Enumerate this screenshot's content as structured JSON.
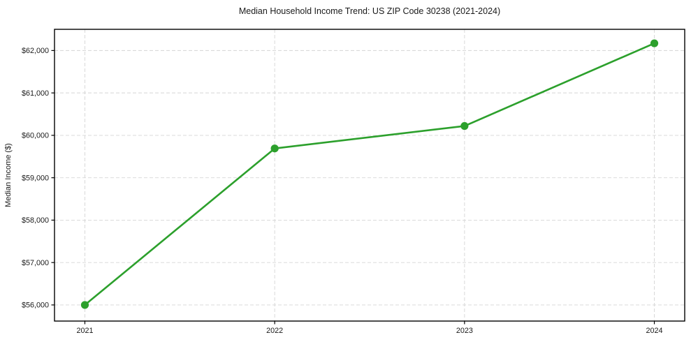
{
  "chart_data": {
    "type": "line",
    "title": "Median Household Income Trend: US ZIP Code 30238 (2021-2024)",
    "xlabel": "",
    "ylabel": "Median Income ($)",
    "x": [
      2021,
      2022,
      2023,
      2024
    ],
    "series": [
      {
        "name": "Median Household Income",
        "values": [
          56000,
          59690,
          60220,
          62170
        ]
      }
    ],
    "xtick_labels": [
      "2021",
      "2022",
      "2023",
      "2024"
    ],
    "yticks": [
      56000,
      57000,
      58000,
      59000,
      60000,
      61000,
      62000
    ],
    "ytick_labels": [
      "$56,000",
      "$57,000",
      "$58,000",
      "$59,000",
      "$60,000",
      "$61,000",
      "$62,000"
    ],
    "xlim": [
      2020.84,
      2024.16
    ],
    "ylim": [
      55620,
      62500
    ],
    "grid": true,
    "legend_position": "none",
    "line_color": "#2ca02c",
    "marker": "circle",
    "grid_color": "#d5d5d5",
    "frame_color": "#000000"
  }
}
